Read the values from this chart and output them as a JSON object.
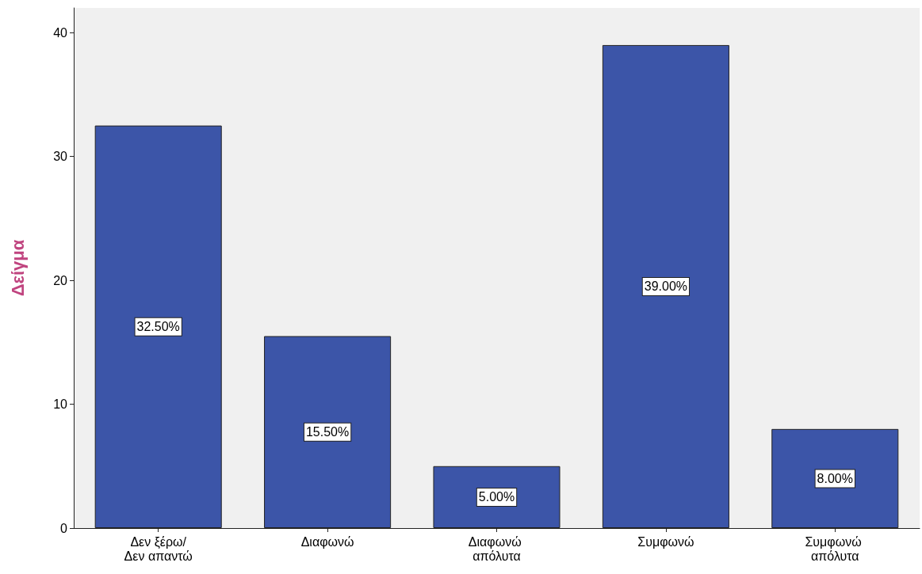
{
  "chart_data": {
    "type": "bar",
    "ylabel": "Δείγμα",
    "categories": [
      "Δεν ξέρω/Δεν απαντώ",
      "Διαφωνώ",
      "Διαφωνώ απόλυτα",
      "Συμφωνώ",
      "Συμφωνώ απόλυτα"
    ],
    "values": [
      32.5,
      15.5,
      5,
      39,
      8
    ],
    "value_labels": [
      "32.50%",
      "15.50%",
      "5.00%",
      "39.00%",
      "8.00%"
    ],
    "color": "#3c55a8",
    "ylim": [
      0,
      42
    ],
    "yticks": [
      0,
      10,
      20,
      30,
      40
    ]
  }
}
